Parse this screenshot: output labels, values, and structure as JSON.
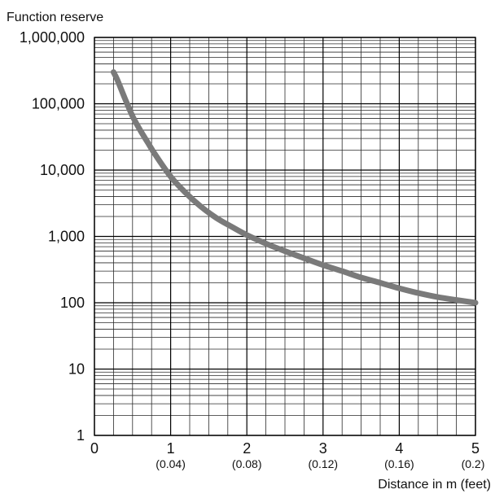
{
  "chart_data": {
    "type": "line",
    "title": "",
    "ylabel": "Function reserve",
    "xlabel": "Distance in m (feet)",
    "y_scale": "log",
    "ylim": [
      1,
      1000000
    ],
    "xlim": [
      0,
      5
    ],
    "grid": true,
    "y_ticks": [
      {
        "value": 1,
        "label": "1"
      },
      {
        "value": 10,
        "label": "10"
      },
      {
        "value": 100,
        "label": "100"
      },
      {
        "value": 1000,
        "label": "1,000"
      },
      {
        "value": 10000,
        "label": "10,000"
      },
      {
        "value": 100000,
        "label": "100,000"
      },
      {
        "value": 1000000,
        "label": "1,000,000"
      }
    ],
    "x_ticks": [
      {
        "value": 0,
        "label": "0",
        "sublabel": ""
      },
      {
        "value": 1,
        "label": "1",
        "sublabel": "(0.04)"
      },
      {
        "value": 2,
        "label": "2",
        "sublabel": "(0.08)"
      },
      {
        "value": 3,
        "label": "3",
        "sublabel": "(0.12)"
      },
      {
        "value": 4,
        "label": "4",
        "sublabel": "(0.16)"
      },
      {
        "value": 5,
        "label": "5",
        "sublabel": "(0.2)"
      }
    ],
    "series": [
      {
        "color": "#7a7a7a",
        "x": [
          0.25,
          0.3,
          0.4,
          0.5,
          0.6,
          0.7,
          0.8,
          1.0,
          1.2,
          1.4,
          1.6,
          1.8,
          2.0,
          2.25,
          2.5,
          2.75,
          3.0,
          3.25,
          3.5,
          3.75,
          4.0,
          4.25,
          4.5,
          4.75,
          5.0
        ],
        "y": [
          300000,
          230000,
          120000,
          65000,
          40000,
          26000,
          17000,
          8000,
          4500,
          2800,
          1900,
          1400,
          1050,
          780,
          600,
          470,
          370,
          300,
          240,
          200,
          165,
          140,
          122,
          110,
          100
        ]
      }
    ]
  }
}
